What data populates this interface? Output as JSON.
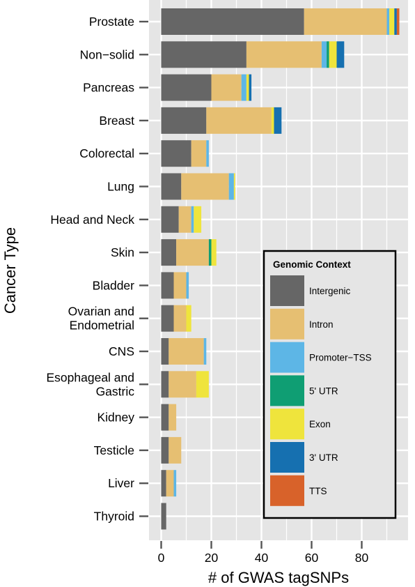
{
  "chart_data": {
    "type": "bar",
    "orientation": "horizontal",
    "stacked": true,
    "xlabel": "# of GWAS tagSNPs",
    "ylabel": "Cancer Type",
    "xlim": [
      0,
      96
    ],
    "xticks": [
      0,
      20,
      40,
      60,
      80
    ],
    "grid": true,
    "categories": [
      [
        "Prostate"
      ],
      [
        "Non−solid"
      ],
      [
        "Pancreas"
      ],
      [
        "Breast"
      ],
      [
        "Colorectal"
      ],
      [
        "Lung"
      ],
      [
        "Head and Neck"
      ],
      [
        "Skin"
      ],
      [
        "Bladder"
      ],
      [
        "Ovarian and",
        "Endometrial"
      ],
      [
        "CNS"
      ],
      [
        "Esophageal and",
        "Gastric"
      ],
      [
        "Kidney"
      ],
      [
        "Testicle"
      ],
      [
        "Liver"
      ],
      [
        "Thyroid"
      ]
    ],
    "legend": {
      "title": "Genomic Context",
      "placement": "bottom-right"
    },
    "series": [
      {
        "name": "Intergenic",
        "color": "#666666",
        "values": [
          57,
          34,
          20,
          18,
          12,
          8,
          7,
          6,
          5,
          5,
          3,
          3,
          3,
          3,
          2,
          2
        ]
      },
      {
        "name": "Intron",
        "color": "#E6BF72",
        "values": [
          33,
          30,
          12,
          26,
          6,
          19,
          5,
          13,
          5,
          5,
          14,
          11,
          3,
          5,
          3,
          0
        ]
      },
      {
        "name": "Promoter−TSS",
        "color": "#5DB6E6",
        "values": [
          1,
          2,
          2,
          0,
          1,
          2,
          1,
          0,
          1,
          0,
          1,
          0,
          0,
          0,
          1,
          0
        ]
      },
      {
        "name": "5' UTR",
        "color": "#0F9E73",
        "values": [
          0,
          1,
          0,
          0,
          0,
          0,
          0,
          1,
          0,
          0,
          0,
          0,
          0,
          0,
          0,
          0
        ]
      },
      {
        "name": "Exon",
        "color": "#EFE43C",
        "values": [
          2,
          3,
          1,
          1,
          0,
          0.5,
          3,
          2,
          0,
          2,
          0,
          5,
          0,
          0,
          0,
          0
        ]
      },
      {
        "name": "3' UTR",
        "color": "#1670B0",
        "values": [
          1,
          3,
          1,
          3,
          0,
          0,
          0,
          0,
          0,
          0,
          0,
          0,
          0,
          0,
          0,
          0
        ]
      },
      {
        "name": "TTS",
        "color": "#D8622A",
        "values": [
          1,
          0,
          0,
          0,
          0,
          0,
          0,
          0,
          0,
          0,
          0,
          0,
          0,
          0,
          0,
          0
        ]
      }
    ]
  }
}
